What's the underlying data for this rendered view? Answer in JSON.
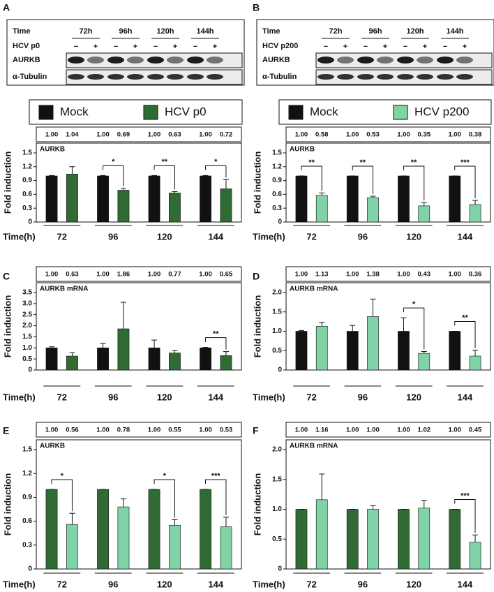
{
  "chart_data": [
    {
      "type": "bar",
      "panel": "A",
      "ylabel": "Fold induction",
      "annotation": "AURKB",
      "xlabel": "Time(h)",
      "blot": {
        "time_label": "Time",
        "times": [
          "72h",
          "96h",
          "120h",
          "144h"
        ],
        "condition_label": "HCV p0",
        "signs": [
          "−",
          "+"
        ],
        "proteins": [
          "AURKB",
          "α-Tubulin"
        ]
      },
      "categories": [
        "72",
        "96",
        "120",
        "144"
      ],
      "series": [
        {
          "name": "Mock",
          "color": "#111111",
          "values": [
            1,
            1,
            1,
            1
          ],
          "value_labels": [
            "1.00",
            "1.00",
            "1.00",
            "1.00"
          ],
          "errors": [
            0.01,
            0.01,
            0.01,
            0.01
          ]
        },
        {
          "name": "HCV p0",
          "color": "#2f6b32",
          "values": [
            1.04,
            0.69,
            0.63,
            0.72
          ],
          "value_labels": [
            "1.04",
            "0.69",
            "0.63",
            "0.72"
          ],
          "errors": [
            0.16,
            0.04,
            0.03,
            0.2
          ]
        }
      ],
      "significance": [
        null,
        "*",
        "**",
        "*"
      ],
      "ylim": [
        0,
        1.5
      ],
      "yticks": [
        0,
        0.3,
        0.6,
        0.9,
        1.2,
        1.5
      ],
      "legend": true
    },
    {
      "type": "bar",
      "panel": "B",
      "ylabel": "Fold induction",
      "annotation": "AURKB",
      "xlabel": "Time(h)",
      "blot": {
        "time_label": "Time",
        "times": [
          "72h",
          "96h",
          "120h",
          "144h"
        ],
        "condition_label": "HCV p200",
        "signs": [
          "−",
          "+"
        ],
        "proteins": [
          "AURKB",
          "α-Tubulin"
        ]
      },
      "categories": [
        "72",
        "96",
        "120",
        "144"
      ],
      "series": [
        {
          "name": "Mock",
          "color": "#111111",
          "values": [
            1,
            1,
            1,
            1
          ],
          "value_labels": [
            "1.00",
            "1.00",
            "1.00",
            "1.00"
          ],
          "errors": [
            0,
            0,
            0,
            0
          ]
        },
        {
          "name": "HCV p200",
          "color": "#80d3a6",
          "values": [
            0.58,
            0.53,
            0.35,
            0.38
          ],
          "value_labels": [
            "0.58",
            "0.53",
            "0.35",
            "0.38"
          ],
          "errors": [
            0.05,
            0.03,
            0.07,
            0.09
          ]
        }
      ],
      "significance": [
        "**",
        "**",
        "**",
        "***"
      ],
      "ylim": [
        0,
        1.5
      ],
      "yticks": [
        0,
        0.3,
        0.6,
        0.9,
        1.2,
        1.5
      ],
      "legend": true
    },
    {
      "type": "bar",
      "panel": "C",
      "ylabel": "Fold induction",
      "annotation": "AURKB mRNA",
      "xlabel": "Time(h)",
      "categories": [
        "72",
        "96",
        "120",
        "144"
      ],
      "series": [
        {
          "color": "#111111",
          "values": [
            1,
            1,
            1,
            1
          ],
          "value_labels": [
            "1.00",
            "1.00",
            "1.00",
            "1.00"
          ],
          "errors": [
            0.05,
            0.2,
            0.35,
            0.02
          ]
        },
        {
          "color": "#2f6b32",
          "values": [
            0.63,
            1.86,
            0.77,
            0.65
          ],
          "value_labels": [
            "0.63",
            "1.86",
            "0.77",
            "0.65"
          ],
          "errors": [
            0.15,
            1.2,
            0.1,
            0.18
          ]
        }
      ],
      "significance": [
        null,
        null,
        null,
        "**"
      ],
      "ylim": [
        0,
        3.5
      ],
      "yticks": [
        0,
        0.5,
        {
          "value": 1,
          "label": "1.0"
        },
        1.5,
        {
          "value": 2,
          "label": "2.0"
        },
        2.5,
        {
          "value": 3,
          "label": "3.0"
        },
        3.5
      ]
    },
    {
      "type": "bar",
      "panel": "D",
      "ylabel": "Fold induction",
      "annotation": "AURKB mRNA",
      "xlabel": "Time(h)",
      "categories": [
        "72",
        "96",
        "120",
        "144"
      ],
      "series": [
        {
          "color": "#111111",
          "values": [
            1,
            1,
            1,
            1
          ],
          "value_labels": [
            "1.00",
            "1.00",
            "1.00",
            "1.00"
          ],
          "errors": [
            0.02,
            0.15,
            0.35,
            0
          ]
        },
        {
          "color": "#80d3a6",
          "values": [
            1.13,
            1.38,
            0.43,
            0.36
          ],
          "value_labels": [
            "1.13",
            "1.38",
            "0.43",
            "0.36"
          ],
          "errors": [
            0.1,
            0.45,
            0.05,
            0.15
          ]
        }
      ],
      "significance": [
        null,
        null,
        "*",
        "**"
      ],
      "ylim": [
        0,
        2
      ],
      "yticks": [
        0,
        0.5,
        {
          "value": 1,
          "label": "1.0"
        },
        1.5,
        {
          "value": 2,
          "label": "2.0"
        }
      ]
    },
    {
      "type": "bar",
      "panel": "E",
      "ylabel": "Fold induction",
      "annotation": "AURKB",
      "xlabel": "Time(h)",
      "categories": [
        "72",
        "96",
        "120",
        "144"
      ],
      "series": [
        {
          "color": "#2f6b32",
          "values": [
            1,
            1,
            1,
            1
          ],
          "value_labels": [
            "1.00",
            "1.00",
            "1.00",
            "1.00"
          ],
          "errors": [
            0,
            0,
            0,
            0
          ]
        },
        {
          "color": "#80d3a6",
          "values": [
            0.56,
            0.78,
            0.55,
            0.53
          ],
          "value_labels": [
            "0.56",
            "0.78",
            "0.55",
            "0.53"
          ],
          "errors": [
            0.14,
            0.1,
            0.07,
            0.12
          ]
        }
      ],
      "significance": [
        "*",
        null,
        "*",
        "***"
      ],
      "ylim": [
        0,
        1.5
      ],
      "yticks": [
        0,
        0.3,
        0.6,
        0.9,
        1.2,
        1.5
      ]
    },
    {
      "type": "bar",
      "panel": "F",
      "ylabel": "Fold induction",
      "annotation": "AURKB mRNA",
      "xlabel": "Time(h)",
      "categories": [
        "72",
        "96",
        "120",
        "144"
      ],
      "series": [
        {
          "color": "#2f6b32",
          "values": [
            1,
            1,
            1,
            1
          ],
          "value_labels": [
            "1.00",
            "1.00",
            "1.00",
            "1.00"
          ],
          "errors": [
            0,
            0,
            0,
            0
          ]
        },
        {
          "color": "#80d3a6",
          "values": [
            1.16,
            1,
            1.02,
            0.45
          ],
          "value_labels": [
            "1.16",
            "1.00",
            "1.02",
            "0.45"
          ],
          "errors": [
            0.43,
            0.06,
            0.13,
            0.12
          ]
        }
      ],
      "significance": [
        null,
        null,
        null,
        "***"
      ],
      "ylim": [
        0,
        2
      ],
      "yticks": [
        0,
        0.5,
        {
          "value": 1,
          "label": "1.0"
        },
        1.5,
        {
          "value": 2,
          "label": "2.0"
        }
      ]
    }
  ]
}
